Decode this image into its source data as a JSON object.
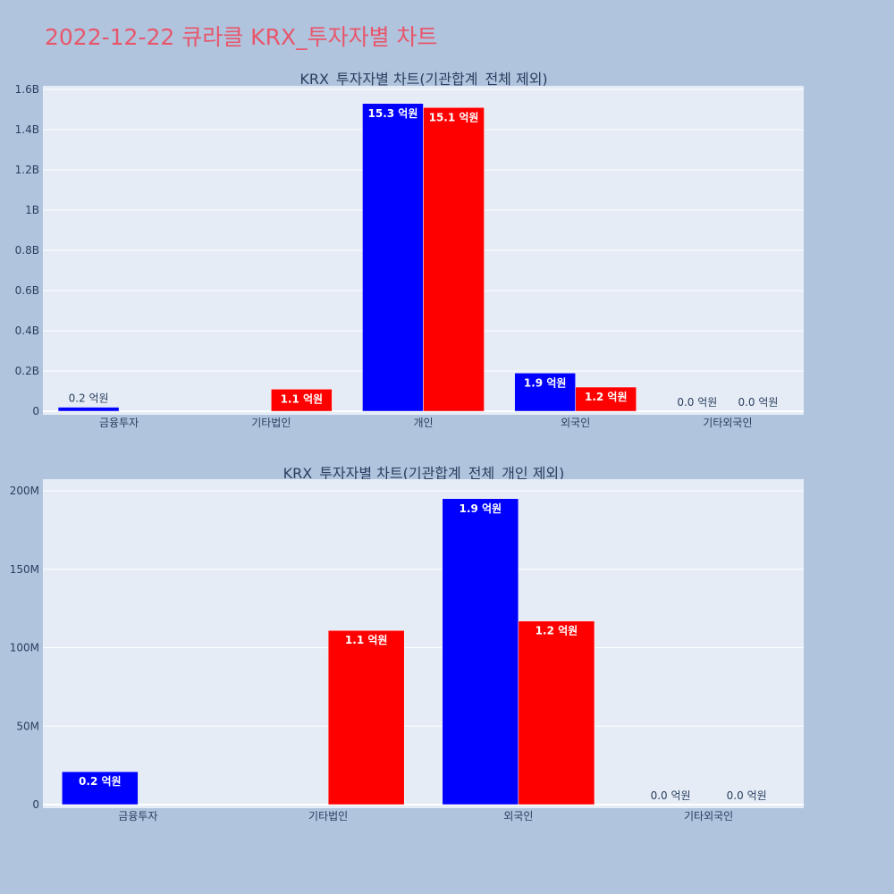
{
  "page": {
    "title": "2022-12-22 큐라클 KRX_투자자별 차트"
  },
  "chart_data": [
    {
      "type": "bar",
      "title": "KRX_투자자별 차트(기관합계_전체 제외)",
      "categories": [
        "금융투자",
        "기타법인",
        "개인",
        "외국인",
        "기타외국인"
      ],
      "series": [
        {
          "color": "#0000ff",
          "values": [
            20000000,
            0,
            1530000000,
            190000000,
            0
          ],
          "labels": [
            "0.2 억원",
            "",
            "15.3 억원",
            "1.9 억원",
            "0.0 억원"
          ]
        },
        {
          "color": "#ff0000",
          "values": [
            0,
            110000000,
            1510000000,
            120000000,
            0
          ],
          "labels": [
            "",
            "1.1 억원",
            "15.1 억원",
            "1.2 억원",
            "0.0 억원"
          ]
        }
      ],
      "ylim": [
        0,
        1600000000
      ],
      "yticks": [
        0,
        200000000,
        400000000,
        600000000,
        800000000,
        1000000000,
        1200000000,
        1400000000,
        1600000000
      ],
      "ytick_labels": [
        "0",
        "0.2B",
        "0.4B",
        "0.6B",
        "0.8B",
        "1B",
        "1.2B",
        "1.4B",
        "1.6B"
      ],
      "grid": true
    },
    {
      "type": "bar",
      "title": "KRX_투자자별 차트(기관합계_전체_개인 제외)",
      "categories": [
        "금융투자",
        "기타법인",
        "외국인",
        "기타외국인"
      ],
      "series": [
        {
          "color": "#0000ff",
          "values": [
            21000000,
            0,
            195000000,
            0
          ],
          "labels": [
            "0.2 억원",
            "",
            "1.9 억원",
            "0.0 억원"
          ]
        },
        {
          "color": "#ff0000",
          "values": [
            0,
            111000000,
            117000000,
            0
          ],
          "labels": [
            "",
            "1.1 억원",
            "1.2 억원",
            "0.0 억원"
          ]
        }
      ],
      "ylim": [
        0,
        207000000
      ],
      "yticks": [
        0,
        50000000,
        100000000,
        150000000,
        200000000
      ],
      "ytick_labels": [
        "0",
        "50M",
        "100M",
        "150M",
        "200M"
      ],
      "grid": true
    }
  ]
}
